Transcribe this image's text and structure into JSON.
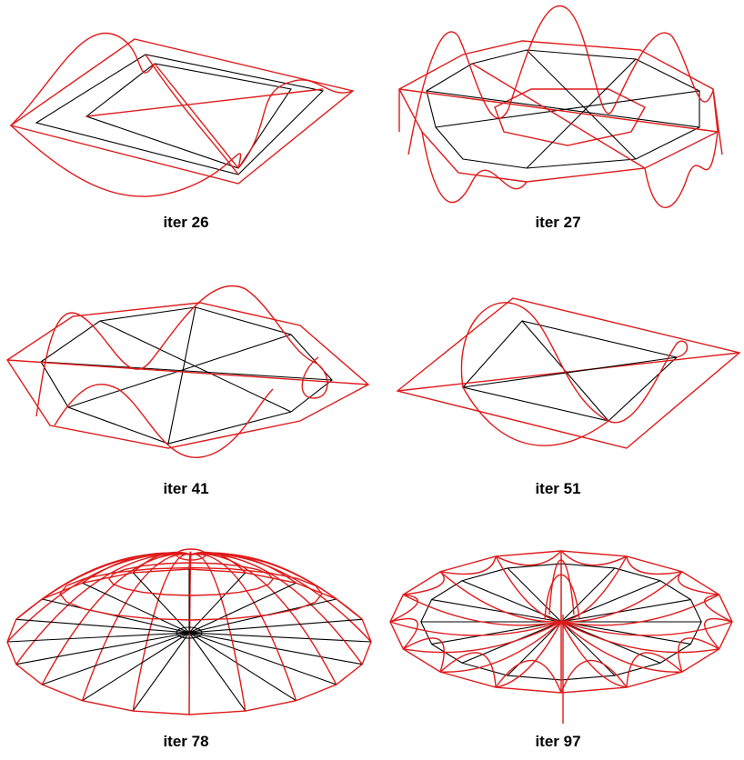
{
  "figure": {
    "colors": {
      "wire_black": "#000000",
      "wire_red": "#e01a1a",
      "background": "#ffffff"
    },
    "panels": [
      {
        "caption": "iter 26"
      },
      {
        "caption": "iter 27"
      },
      {
        "caption": "iter 41"
      },
      {
        "caption": "iter 51"
      },
      {
        "caption": "iter 78"
      },
      {
        "caption": "iter 97"
      }
    ]
  }
}
